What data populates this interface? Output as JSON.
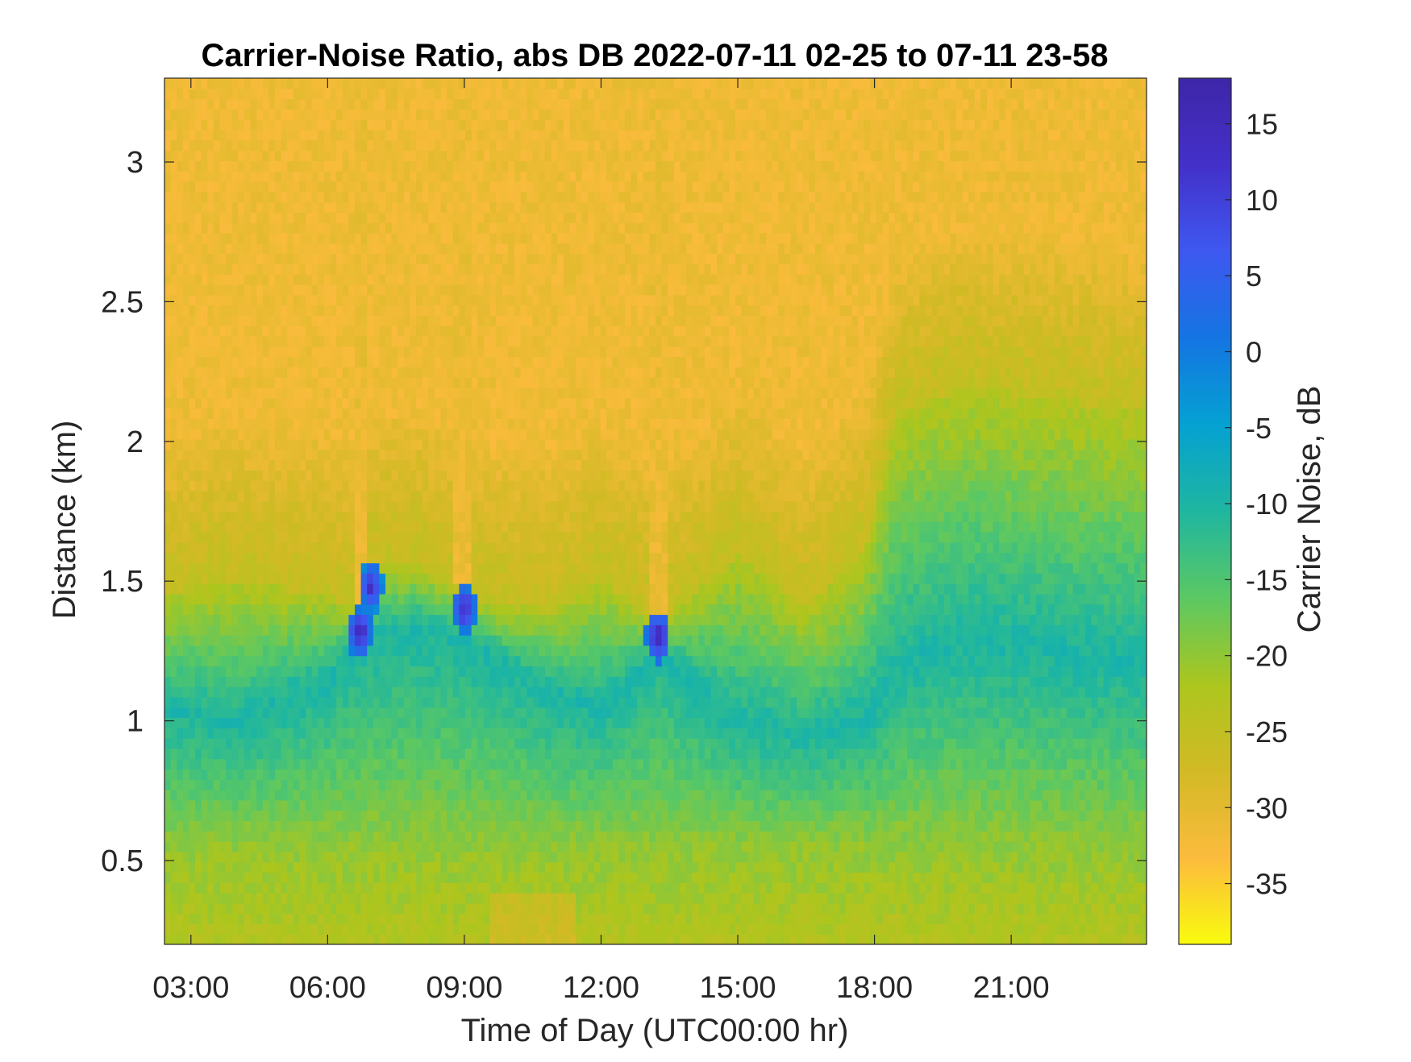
{
  "chart_data": {
    "type": "heatmap",
    "title": "Carrier-Noise Ratio, abs DB 2022-07-11 02-25 to 07-11 23-58",
    "xlabel": "Time of Day (UTC00:00 hr)",
    "ylabel": "Distance (km)",
    "colorbar_label": "Carrier Noise, dB",
    "x_range_hours": [
      2.42,
      23.97
    ],
    "y_range_km": [
      0.2,
      3.3
    ],
    "clim": [
      -39,
      18
    ],
    "x_ticks": [
      {
        "value": 3,
        "label": "03:00"
      },
      {
        "value": 6,
        "label": "06:00"
      },
      {
        "value": 9,
        "label": "09:00"
      },
      {
        "value": 12,
        "label": "12:00"
      },
      {
        "value": 15,
        "label": "15:00"
      },
      {
        "value": 18,
        "label": "18:00"
      },
      {
        "value": 21,
        "label": "21:00"
      }
    ],
    "y_ticks": [
      {
        "value": 0.5,
        "label": "0.5"
      },
      {
        "value": 1,
        "label": "1"
      },
      {
        "value": 1.5,
        "label": "1.5"
      },
      {
        "value": 2,
        "label": "2"
      },
      {
        "value": 2.5,
        "label": "2.5"
      },
      {
        "value": 3,
        "label": "3"
      }
    ],
    "colorbar_ticks": [
      {
        "value": 15,
        "label": "15"
      },
      {
        "value": 10,
        "label": "10"
      },
      {
        "value": 5,
        "label": "5"
      },
      {
        "value": 0,
        "label": "0"
      },
      {
        "value": -5,
        "label": "-5"
      },
      {
        "value": -10,
        "label": "-10"
      },
      {
        "value": -15,
        "label": "-15"
      },
      {
        "value": -20,
        "label": "-20"
      },
      {
        "value": -25,
        "label": "-25"
      },
      {
        "value": -30,
        "label": "-30"
      },
      {
        "value": -35,
        "label": "-35"
      }
    ],
    "colormap": [
      "#f9fb0e",
      "#fcbb3d",
      "#d2ba25",
      "#acc61e",
      "#5bc863",
      "#1fb6a0",
      "#05a1d2",
      "#1475e2",
      "#3e58f0",
      "#4330c9",
      "#3e26a8"
    ],
    "grid": false,
    "series": [
      {
        "x": 2.42,
        "boundary_km": 1.45,
        "core_km": 1.05
      },
      {
        "x": 4.0,
        "boundary_km": 1.5,
        "core_km": 1.0
      },
      {
        "x": 6.0,
        "boundary_km": 1.45,
        "core_km": 1.15
      },
      {
        "x": 6.5,
        "boundary_km": 1.4,
        "core_km": 1.25
      },
      {
        "x": 7.0,
        "boundary_km": 1.55,
        "core_km": 1.3
      },
      {
        "x": 8.0,
        "boundary_km": 1.55,
        "core_km": 1.35
      },
      {
        "x": 9.0,
        "boundary_km": 1.45,
        "core_km": 1.3
      },
      {
        "x": 10.0,
        "boundary_km": 1.4,
        "core_km": 1.2
      },
      {
        "x": 11.0,
        "boundary_km": 1.4,
        "core_km": 1.1
      },
      {
        "x": 12.0,
        "boundary_km": 1.5,
        "core_km": 1.05
      },
      {
        "x": 13.3,
        "boundary_km": 1.35,
        "core_km": 1.25
      },
      {
        "x": 15.0,
        "boundary_km": 1.6,
        "core_km": 1.0
      },
      {
        "x": 16.5,
        "boundary_km": 1.4,
        "core_km": 0.95
      },
      {
        "x": 17.8,
        "boundary_km": 1.6,
        "core_km": 1.0
      },
      {
        "x": 18.5,
        "boundary_km": 2.1,
        "core_km": 1.2
      },
      {
        "x": 20.0,
        "boundary_km": 2.2,
        "core_km": 1.3
      },
      {
        "x": 22.0,
        "boundary_km": 2.15,
        "core_km": 1.25
      },
      {
        "x": 23.97,
        "boundary_km": 2.1,
        "core_km": 1.2
      }
    ],
    "hotspots": [
      {
        "x": 6.7,
        "y_km": 1.32,
        "value": 16
      },
      {
        "x": 6.95,
        "y_km": 1.48,
        "value": 14
      },
      {
        "x": 9.0,
        "y_km": 1.4,
        "value": 15
      },
      {
        "x": 13.25,
        "y_km": 1.3,
        "value": 17
      }
    ],
    "plumes": [
      {
        "x": 6.75,
        "top_km": 3.3,
        "bottom_km": 1.38
      },
      {
        "x": 8.95,
        "top_km": 3.3,
        "bottom_km": 1.48
      },
      {
        "x": 13.25,
        "top_km": 3.3,
        "bottom_km": 1.35
      }
    ]
  }
}
